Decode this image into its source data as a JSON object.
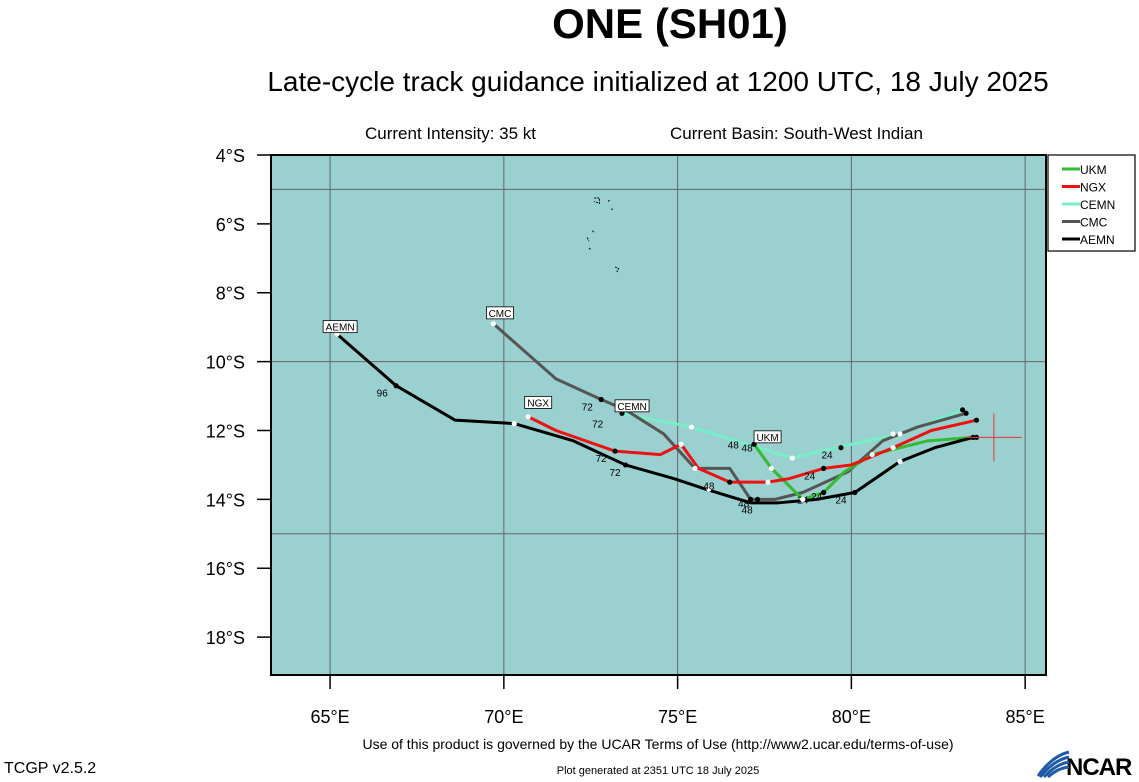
{
  "header": {
    "title": "ONE (SH01)",
    "subtitle": "Late-cycle track guidance initialized at 1200 UTC, 18 July 2025",
    "intensity": "Current Intensity: 35 kt",
    "basin": "Current Basin: South-West Indian"
  },
  "footer": {
    "terms": "Use of this product is governed by the UCAR Terms of Use (http://www2.ucar.edu/terms-of-use)",
    "generated": "Plot generated at 2351 UTC   18 July 2025",
    "version": "TCGP v2.5.2",
    "logo_text": "NCAR"
  },
  "colors": {
    "ocean": "#9bd0d0",
    "UKM": "#33bb33",
    "NGX": "#ee1111",
    "CEMN": "#77eec8",
    "CMC": "#555555",
    "AEMN": "#000000"
  },
  "chart_data": {
    "type": "line",
    "xlabel": "",
    "ylabel": "",
    "xlim": [
      63.3,
      85.6
    ],
    "ylim": [
      -19.1,
      -4.0
    ],
    "grid": true,
    "x_ticks": [
      {
        "v": 65,
        "label": "65°E"
      },
      {
        "v": 70,
        "label": "70°E"
      },
      {
        "v": 75,
        "label": "75°E"
      },
      {
        "v": 80,
        "label": "80°E"
      },
      {
        "v": 85,
        "label": "85°E"
      }
    ],
    "y_ticks": [
      {
        "v": -4,
        "label": "4°S"
      },
      {
        "v": -6,
        "label": "6°S"
      },
      {
        "v": -8,
        "label": "8°S"
      },
      {
        "v": -10,
        "label": "10°S"
      },
      {
        "v": -12,
        "label": "12°S"
      },
      {
        "v": -14,
        "label": "14°S"
      },
      {
        "v": -16,
        "label": "16°S"
      },
      {
        "v": -18,
        "label": "18°S"
      }
    ],
    "gridlines_x": [
      65,
      70,
      75,
      80,
      85
    ],
    "gridlines_y": [
      -5,
      -10,
      -15
    ],
    "current_position": [
      84.1,
      -12.2
    ],
    "legend_position": "top-right",
    "series": [
      {
        "name": "UKM",
        "tag_at": [
          77.2,
          -12.3
        ],
        "points": [
          [
            83.5,
            -12.2
          ],
          [
            82.2,
            -12.3
          ],
          [
            80.6,
            -12.7
          ],
          [
            79.8,
            -13.2
          ],
          [
            79.2,
            -13.8
          ],
          [
            78.6,
            -14.0
          ],
          [
            77.7,
            -13.1
          ],
          [
            77.2,
            -12.4
          ]
        ],
        "dots": [
          [
            83.5,
            -12.2,
            "b"
          ],
          [
            80.6,
            -12.7,
            "w"
          ],
          [
            79.2,
            -13.8,
            "b"
          ],
          [
            78.6,
            -14.0,
            "w"
          ],
          [
            77.7,
            -13.1,
            "w"
          ],
          [
            77.2,
            -12.4,
            "b"
          ]
        ],
        "labels": [
          {
            "t": "24",
            "x": 78.6,
            "y": -14.0
          },
          {
            "t": "48",
            "x": 77.0,
            "y": -12.5
          }
        ]
      },
      {
        "name": "NGX",
        "tag_at": [
          70.6,
          -11.3
        ],
        "points": [
          [
            83.6,
            -11.7
          ],
          [
            82.3,
            -12.0
          ],
          [
            81.2,
            -12.5
          ],
          [
            80.0,
            -13.0
          ],
          [
            79.2,
            -13.1
          ],
          [
            78.2,
            -13.4
          ],
          [
            77.6,
            -13.5
          ],
          [
            76.5,
            -13.5
          ],
          [
            75.6,
            -13.1
          ],
          [
            75.1,
            -12.4
          ],
          [
            74.5,
            -12.7
          ],
          [
            73.2,
            -12.6
          ],
          [
            71.5,
            -12.0
          ],
          [
            70.7,
            -11.6
          ]
        ],
        "dots": [
          [
            83.6,
            -11.7,
            "b"
          ],
          [
            81.2,
            -12.5,
            "w"
          ],
          [
            79.2,
            -13.1,
            "b"
          ],
          [
            77.6,
            -13.5,
            "w"
          ],
          [
            76.5,
            -13.5,
            "b"
          ],
          [
            75.1,
            -12.4,
            "w"
          ],
          [
            73.2,
            -12.6,
            "b"
          ],
          [
            70.7,
            -11.6,
            "w"
          ]
        ],
        "labels": [
          {
            "t": "24",
            "x": 78.8,
            "y": -13.3
          },
          {
            "t": "72",
            "x": 72.8,
            "y": -12.8
          }
        ]
      },
      {
        "name": "CEMN",
        "tag_at": [
          73.2,
          -11.4
        ],
        "points": [
          [
            83.2,
            -11.4
          ],
          [
            81.4,
            -12.1
          ],
          [
            80.0,
            -12.4
          ],
          [
            78.3,
            -12.8
          ],
          [
            77.0,
            -12.4
          ],
          [
            75.4,
            -11.9
          ],
          [
            73.4,
            -11.5
          ]
        ],
        "dots": [
          [
            83.2,
            -11.4,
            "b"
          ],
          [
            81.4,
            -12.1,
            "w"
          ],
          [
            79.7,
            -12.5,
            "b"
          ],
          [
            78.3,
            -12.8,
            "w"
          ],
          [
            75.4,
            -11.9,
            "w"
          ],
          [
            73.4,
            -11.5,
            "b"
          ]
        ],
        "labels": [
          {
            "t": "24",
            "x": 79.3,
            "y": -12.7
          },
          {
            "t": "48",
            "x": 76.6,
            "y": -12.4
          },
          {
            "t": "72",
            "x": 72.7,
            "y": -11.8
          }
        ]
      },
      {
        "name": "CMC",
        "tag_at": [
          69.5,
          -8.7
        ],
        "points": [
          [
            83.3,
            -11.5
          ],
          [
            81.9,
            -11.9
          ],
          [
            80.9,
            -12.3
          ],
          [
            79.9,
            -13.2
          ],
          [
            78.6,
            -13.8
          ],
          [
            77.8,
            -14.0
          ],
          [
            77.1,
            -14.0
          ],
          [
            76.5,
            -13.1
          ],
          [
            75.5,
            -13.1
          ],
          [
            74.6,
            -12.1
          ],
          [
            73.5,
            -11.4
          ],
          [
            72.8,
            -11.1
          ],
          [
            71.5,
            -10.5
          ],
          [
            69.7,
            -8.9
          ]
        ],
        "dots": [
          [
            83.3,
            -11.5,
            "b"
          ],
          [
            81.2,
            -12.1,
            "w"
          ],
          [
            79.2,
            -13.8,
            "b"
          ],
          [
            77.1,
            -14.0,
            "b"
          ],
          [
            75.5,
            -13.1,
            "w"
          ],
          [
            72.8,
            -11.1,
            "b"
          ],
          [
            69.7,
            -8.9,
            "w"
          ]
        ],
        "labels": [
          {
            "t": "24",
            "x": 79.0,
            "y": -13.9
          },
          {
            "t": "48",
            "x": 76.9,
            "y": -14.1
          },
          {
            "t": "72",
            "x": 72.4,
            "y": -11.3
          }
        ]
      },
      {
        "name": "AEMN",
        "tag_at": [
          64.8,
          -9.1
        ],
        "points": [
          [
            83.5,
            -12.2
          ],
          [
            82.4,
            -12.5
          ],
          [
            81.4,
            -12.9
          ],
          [
            80.1,
            -13.8
          ],
          [
            79.0,
            -14.0
          ],
          [
            77.9,
            -14.1
          ],
          [
            77.1,
            -14.1
          ],
          [
            75.8,
            -13.7
          ],
          [
            74.9,
            -13.4
          ],
          [
            73.5,
            -13.0
          ],
          [
            72.0,
            -12.3
          ],
          [
            70.3,
            -11.8
          ],
          [
            68.6,
            -11.7
          ],
          [
            66.9,
            -10.7
          ],
          [
            65.2,
            -9.2
          ]
        ],
        "dots": [
          [
            83.6,
            -12.2,
            "b"
          ],
          [
            81.4,
            -12.9,
            "w"
          ],
          [
            80.1,
            -13.8,
            "b"
          ],
          [
            78.6,
            -14.0,
            "w"
          ],
          [
            77.3,
            -14.0,
            "b"
          ],
          [
            75.9,
            -13.7,
            "w"
          ],
          [
            73.5,
            -13.0,
            "b"
          ],
          [
            70.3,
            -11.8,
            "w"
          ],
          [
            66.9,
            -10.7,
            "b"
          ],
          [
            65.2,
            -9.2,
            "w"
          ]
        ],
        "labels": [
          {
            "t": "24",
            "x": 79.7,
            "y": -14.0
          },
          {
            "t": "48",
            "x": 75.9,
            "y": -13.6
          },
          {
            "t": "72",
            "x": 73.2,
            "y": -13.2
          },
          {
            "t": "96",
            "x": 66.5,
            "y": -10.9
          },
          {
            "t": "48",
            "x": 77.0,
            "y": -14.3
          }
        ]
      }
    ],
    "islands": [
      [
        [
          72.6,
          -5.25
        ],
        [
          72.75,
          -5.25
        ],
        [
          72.75,
          -5.4
        ],
        [
          72.6,
          -5.35
        ]
      ],
      [
        [
          73.0,
          -5.35
        ],
        [
          73.05,
          -5.3
        ]
      ],
      [
        [
          73.1,
          -5.55
        ],
        [
          73.12,
          -5.6
        ]
      ],
      [
        [
          72.4,
          -6.4
        ],
        [
          72.45,
          -6.5
        ]
      ],
      [
        [
          72.55,
          -6.2
        ],
        [
          72.6,
          -6.25
        ]
      ],
      [
        [
          72.45,
          -6.7
        ],
        [
          72.5,
          -6.75
        ]
      ],
      [
        [
          73.2,
          -7.25
        ],
        [
          73.3,
          -7.3
        ],
        [
          73.25,
          -7.4
        ]
      ]
    ]
  }
}
